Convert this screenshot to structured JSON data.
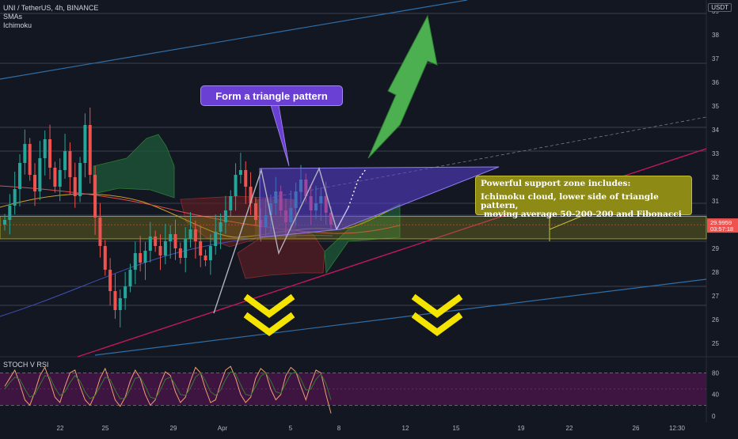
{
  "header": {
    "symbol_line": "UNI / TetherUS, 4h, BINANCE",
    "indicator_1": "SMAs",
    "indicator_2": "Ichimoku",
    "currency_badge": "USDT"
  },
  "annotations": {
    "triangle_label": "Form a triangle pattern",
    "support_title": "Powerful support zone includes:",
    "support_line_1": "Ichimoku cloud, lower side of triangle pattern,",
    "support_line_2": "moving average 50-200-200 and Fibonacci"
  },
  "price_badge": {
    "price": "29.9959",
    "countdown": "03:57:18"
  },
  "colors": {
    "background": "#131722",
    "up": "#26a69a",
    "down": "#ef5350",
    "triangle": "#5b3fd8",
    "arrow": "#4caf50",
    "chevron": "#f5e400",
    "support_zone": "#8a8a1a",
    "stoch_band": "#4a1448"
  },
  "chart_data": [
    {
      "type": "candlestick",
      "title": "UNI / TetherUS, 4h, BINANCE",
      "y_axis_ticks": [
        25,
        26,
        27,
        28,
        29,
        30,
        31,
        32,
        33,
        34,
        35,
        36,
        37,
        38,
        39
      ],
      "ylim": [
        24.5,
        39.5
      ],
      "x_axis_ticks": [
        "22",
        "25",
        "29",
        "Apr",
        "5",
        "8",
        "12",
        "15",
        "19",
        "22",
        "26",
        "12:30"
      ],
      "current_price": 29.9959,
      "support_zone": [
        29.4,
        30.35
      ],
      "triangle_range": [
        28.8,
        32.5
      ],
      "horizontal_levels": [
        26.6,
        27.4,
        29.3,
        30.4,
        30.9,
        33.1,
        34.1,
        36.8,
        38.9
      ],
      "series": [
        {
          "name": "UNI / TetherUS",
          "kind": "ohlc",
          "close": [
            30.2,
            30.8,
            31.5,
            32.6,
            33.4,
            32.1,
            31.4,
            32.8,
            33.6,
            32.4,
            31.6,
            32.3,
            33.1,
            32.0,
            31.2,
            32.6,
            34.2,
            32.1,
            30.3,
            29.1,
            28.1,
            27.2,
            26.4,
            26.9,
            27.4,
            28.1,
            28.8,
            28.4,
            28.9,
            29.5,
            29.1,
            28.7,
            29.3,
            29.6,
            29.0,
            28.6,
            29.4,
            29.8,
            29.3,
            28.7,
            28.5,
            29.1,
            29.7,
            30.1,
            30.6,
            31.2,
            32.1,
            32.3,
            31.6,
            30.9,
            30.2,
            29.9,
            30.4,
            30.9,
            31.4,
            30.6,
            30.1,
            30.7,
            31.4,
            31.9,
            31.2,
            30.6,
            30.9,
            31.2,
            30.5,
            30.0
          ]
        }
      ]
    },
    {
      "type": "line",
      "title": "STOCH V RSI",
      "y_axis_ticks": [
        0,
        40,
        80
      ],
      "ylim": [
        -10,
        110
      ],
      "band": [
        20,
        80
      ],
      "series": [
        {
          "name": "K",
          "values": [
            55,
            70,
            85,
            60,
            30,
            20,
            45,
            75,
            90,
            65,
            35,
            25,
            55,
            80,
            85,
            55,
            30,
            20,
            40,
            70,
            88,
            60,
            30,
            18,
            35,
            65,
            85,
            70,
            40,
            20,
            30,
            60,
            82,
            75,
            45,
            25,
            35,
            65,
            90,
            80,
            50,
            25,
            30,
            60,
            85,
            92,
            70,
            40,
            25,
            35,
            70,
            88,
            80,
            50,
            30,
            40,
            75,
            90,
            82,
            55,
            30,
            60,
            85,
            80,
            40,
            5
          ]
        },
        {
          "name": "D",
          "values": [
            50,
            62,
            72,
            68,
            50,
            35,
            40,
            58,
            75,
            72,
            52,
            38,
            45,
            62,
            75,
            65,
            45,
            32,
            38,
            55,
            72,
            68,
            48,
            32,
            33,
            50,
            70,
            72,
            55,
            35,
            32,
            48,
            68,
            72,
            58,
            40,
            38,
            52,
            72,
            80,
            65,
            45,
            38,
            48,
            68,
            82,
            78,
            58,
            40,
            38,
            55,
            74,
            80,
            65,
            45,
            42,
            60,
            78,
            82,
            68,
            48,
            50,
            68,
            78,
            60,
            30
          ]
        }
      ]
    }
  ]
}
